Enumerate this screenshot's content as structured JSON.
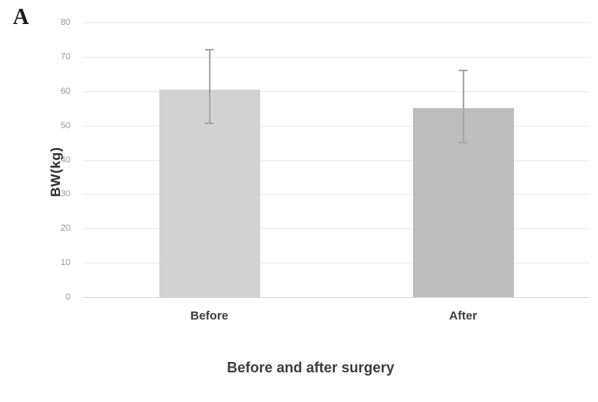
{
  "panel_label": "A",
  "chart_data": {
    "type": "bar",
    "title": "Before and after surgery",
    "title_position": "bottom",
    "ylabel": "BW(kg)",
    "xlabel": "",
    "categories": [
      "Before",
      "After"
    ],
    "values": [
      60.5,
      55
    ],
    "errors": [
      {
        "upper": 72,
        "lower": 50.5
      },
      {
        "upper": 66,
        "lower": 45
      }
    ],
    "ylim": [
      0,
      80
    ],
    "ytick_step": 10,
    "grid": true,
    "legend": "none",
    "bar_colors": [
      "#d2d2d2",
      "#bdbdbd"
    ],
    "error_bar_color": "#a6a6a6"
  }
}
